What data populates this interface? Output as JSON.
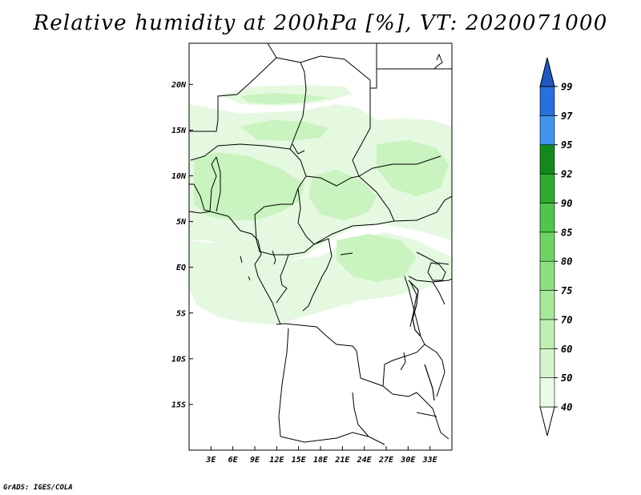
{
  "title": "Relative humidity at 200hPa [%], VT: 2020071000",
  "credit": "GrADS: IGES/COLA",
  "map": {
    "lon_range": [
      0,
      36
    ],
    "lat_range": [
      -20,
      24.5
    ],
    "lon_ticks": [
      3,
      6,
      9,
      12,
      15,
      18,
      21,
      24,
      27,
      30,
      33
    ],
    "lon_tick_labels": [
      "3E",
      "6E",
      "9E",
      "12E",
      "15E",
      "18E",
      "21E",
      "24E",
      "27E",
      "30E",
      "33E"
    ],
    "lat_ticks": [
      20,
      15,
      10,
      5,
      0,
      -5,
      -10,
      -15
    ],
    "lat_tick_labels": [
      "20N",
      "15N",
      "10N",
      "5N",
      "EQ",
      "5S",
      "10S",
      "15S"
    ]
  },
  "colorbar": {
    "levels": [
      "40",
      "50",
      "60",
      "70",
      "75",
      "80",
      "85",
      "90",
      "92",
      "95",
      "97",
      "99"
    ],
    "colors": [
      "#ffffff",
      "#eafbe6",
      "#d5f6cd",
      "#bff0b3",
      "#a7e99a",
      "#8de07f",
      "#6fd463",
      "#4fc64a",
      "#2faa2f",
      "#14891b",
      "#3f95ec",
      "#2770de",
      "#1f58c4"
    ]
  }
}
